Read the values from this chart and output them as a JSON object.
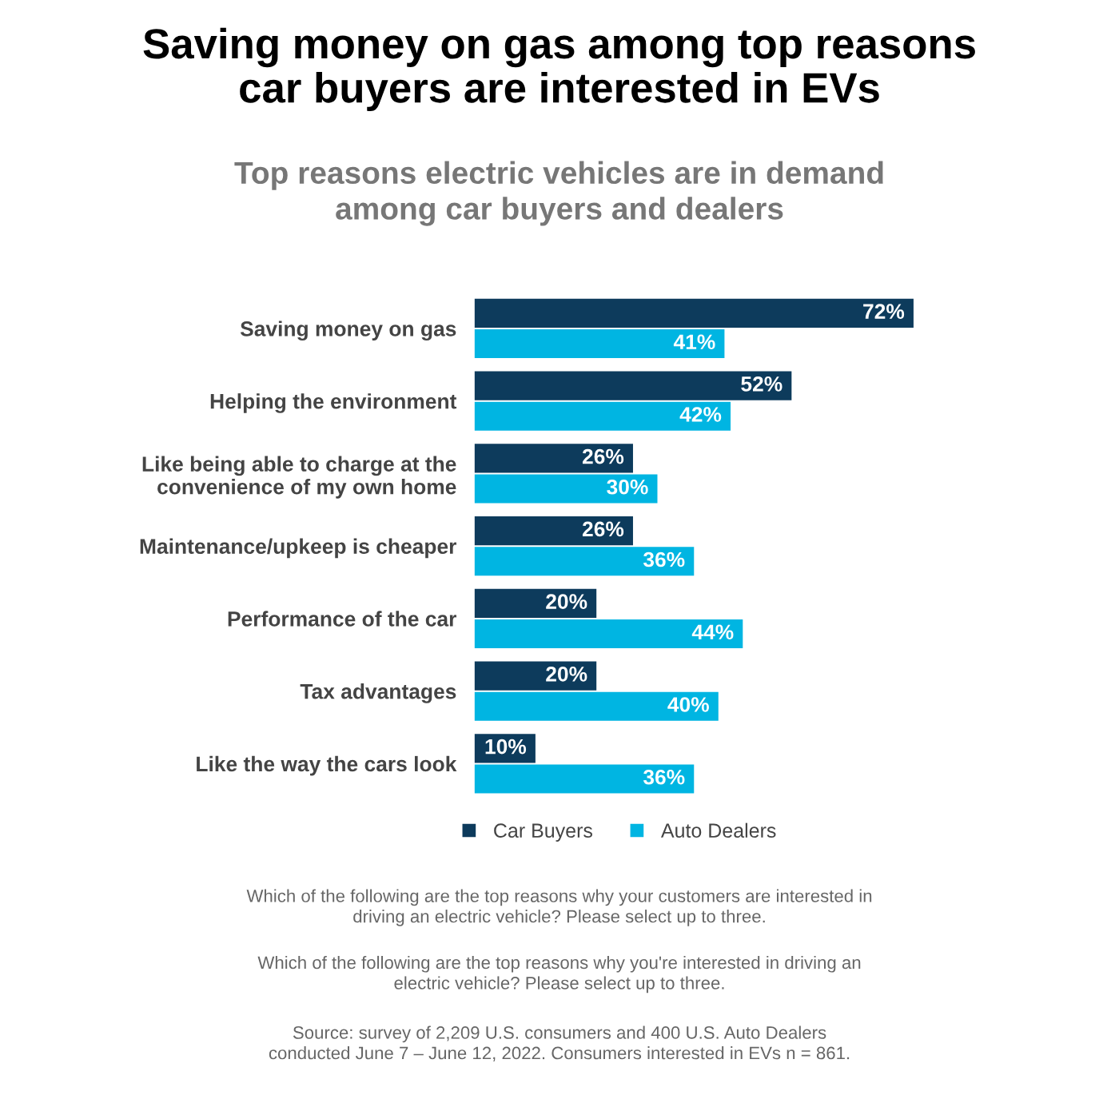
{
  "chart_data": {
    "type": "bar",
    "orientation": "horizontal",
    "title": "Saving money on gas among top reasons\ncar buyers are interested in EVs",
    "subtitle": "Top reasons electric vehicles are in demand\namong car buyers and dealers",
    "categories": [
      "Saving money on gas",
      "Helping the environment",
      "Like being able to charge at the\nconvenience of my own home",
      "Maintenance/upkeep is cheaper",
      "Performance of the car",
      "Tax advantages",
      "Like the way the cars look"
    ],
    "series": [
      {
        "name": "Car Buyers",
        "color": "#0d3b5c",
        "values": [
          72,
          52,
          26,
          26,
          20,
          20,
          10
        ],
        "value_labels": [
          "72%",
          "52%",
          "26%",
          "26%",
          "20%",
          "20%",
          "10%"
        ]
      },
      {
        "name": "Auto Dealers",
        "color": "#00b5e2",
        "values": [
          41,
          42,
          30,
          36,
          44,
          40,
          36
        ],
        "value_labels": [
          "41%",
          "42%",
          "30%",
          "36%",
          "44%",
          "40%",
          "36%"
        ]
      }
    ],
    "legend": "bottom",
    "grid": false,
    "annotations": [
      "Which of the following are the top reasons why your customers are interested in\ndriving an electric vehicle? Please select up to three.",
      "Which of the following are the top reasons why you're interested in driving an\nelectric vehicle? Please select up to three.",
      "Source: survey of 2,209 U.S. consumers and 400 U.S. Auto Dealers\nconducted June 7 – June 12, 2022. Consumers interested in EVs n = 861."
    ]
  }
}
